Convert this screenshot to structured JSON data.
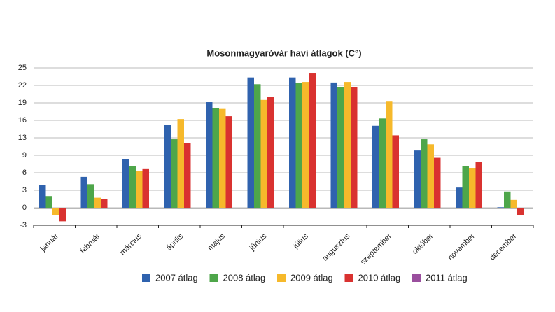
{
  "chart_data": {
    "type": "bar",
    "title": "Mosonmagyaróvár havi átlagok (C°)",
    "categories": [
      "január",
      "február",
      "március",
      "április",
      "május",
      "június",
      "július",
      "augusztus",
      "szeptember",
      "október",
      "november",
      "december"
    ],
    "series": [
      {
        "name": "2007 átlag",
        "color": "#2f62ae",
        "values": [
          4.2,
          5.6,
          8.7,
          14.8,
          18.9,
          23.3,
          23.3,
          22.4,
          14.7,
          10.3,
          3.7,
          0.2
        ]
      },
      {
        "name": "2008 átlag",
        "color": "#4ea64a",
        "values": [
          2.2,
          4.3,
          7.5,
          12.3,
          17.9,
          22.1,
          22.3,
          21.6,
          16.0,
          12.3,
          7.5,
          3.0
        ]
      },
      {
        "name": "2009 átlag",
        "color": "#f6b92b",
        "values": [
          -1.2,
          1.9,
          6.6,
          15.9,
          17.7,
          19.3,
          22.5,
          22.5,
          19.0,
          11.4,
          7.2,
          1.5
        ]
      },
      {
        "name": "2010 átlag",
        "color": "#d93230",
        "values": [
          -2.3,
          1.7,
          7.1,
          11.6,
          16.4,
          19.8,
          24.0,
          21.6,
          13.0,
          9.0,
          8.2,
          -1.2
        ]
      },
      {
        "name": "2011 átlag",
        "color": "#9a4f9e",
        "values": [
          null,
          null,
          null,
          null,
          null,
          null,
          null,
          null,
          null,
          null,
          null,
          null
        ]
      }
    ],
    "ylim": [
      -3,
      25
    ],
    "yticks": [
      -3,
      {
        "value": 0.11,
        "label": "0"
      },
      {
        "value": 3.22,
        "label": "3"
      },
      {
        "value": 6.33,
        "label": "6"
      },
      {
        "value": 9.44,
        "label": "9"
      },
      {
        "value": 12.56,
        "label": "13"
      },
      {
        "value": 15.67,
        "label": "16"
      },
      {
        "value": 18.78,
        "label": "19"
      },
      {
        "value": 21.89,
        "label": "22"
      },
      25
    ],
    "grid": true,
    "legend": "bottom"
  }
}
